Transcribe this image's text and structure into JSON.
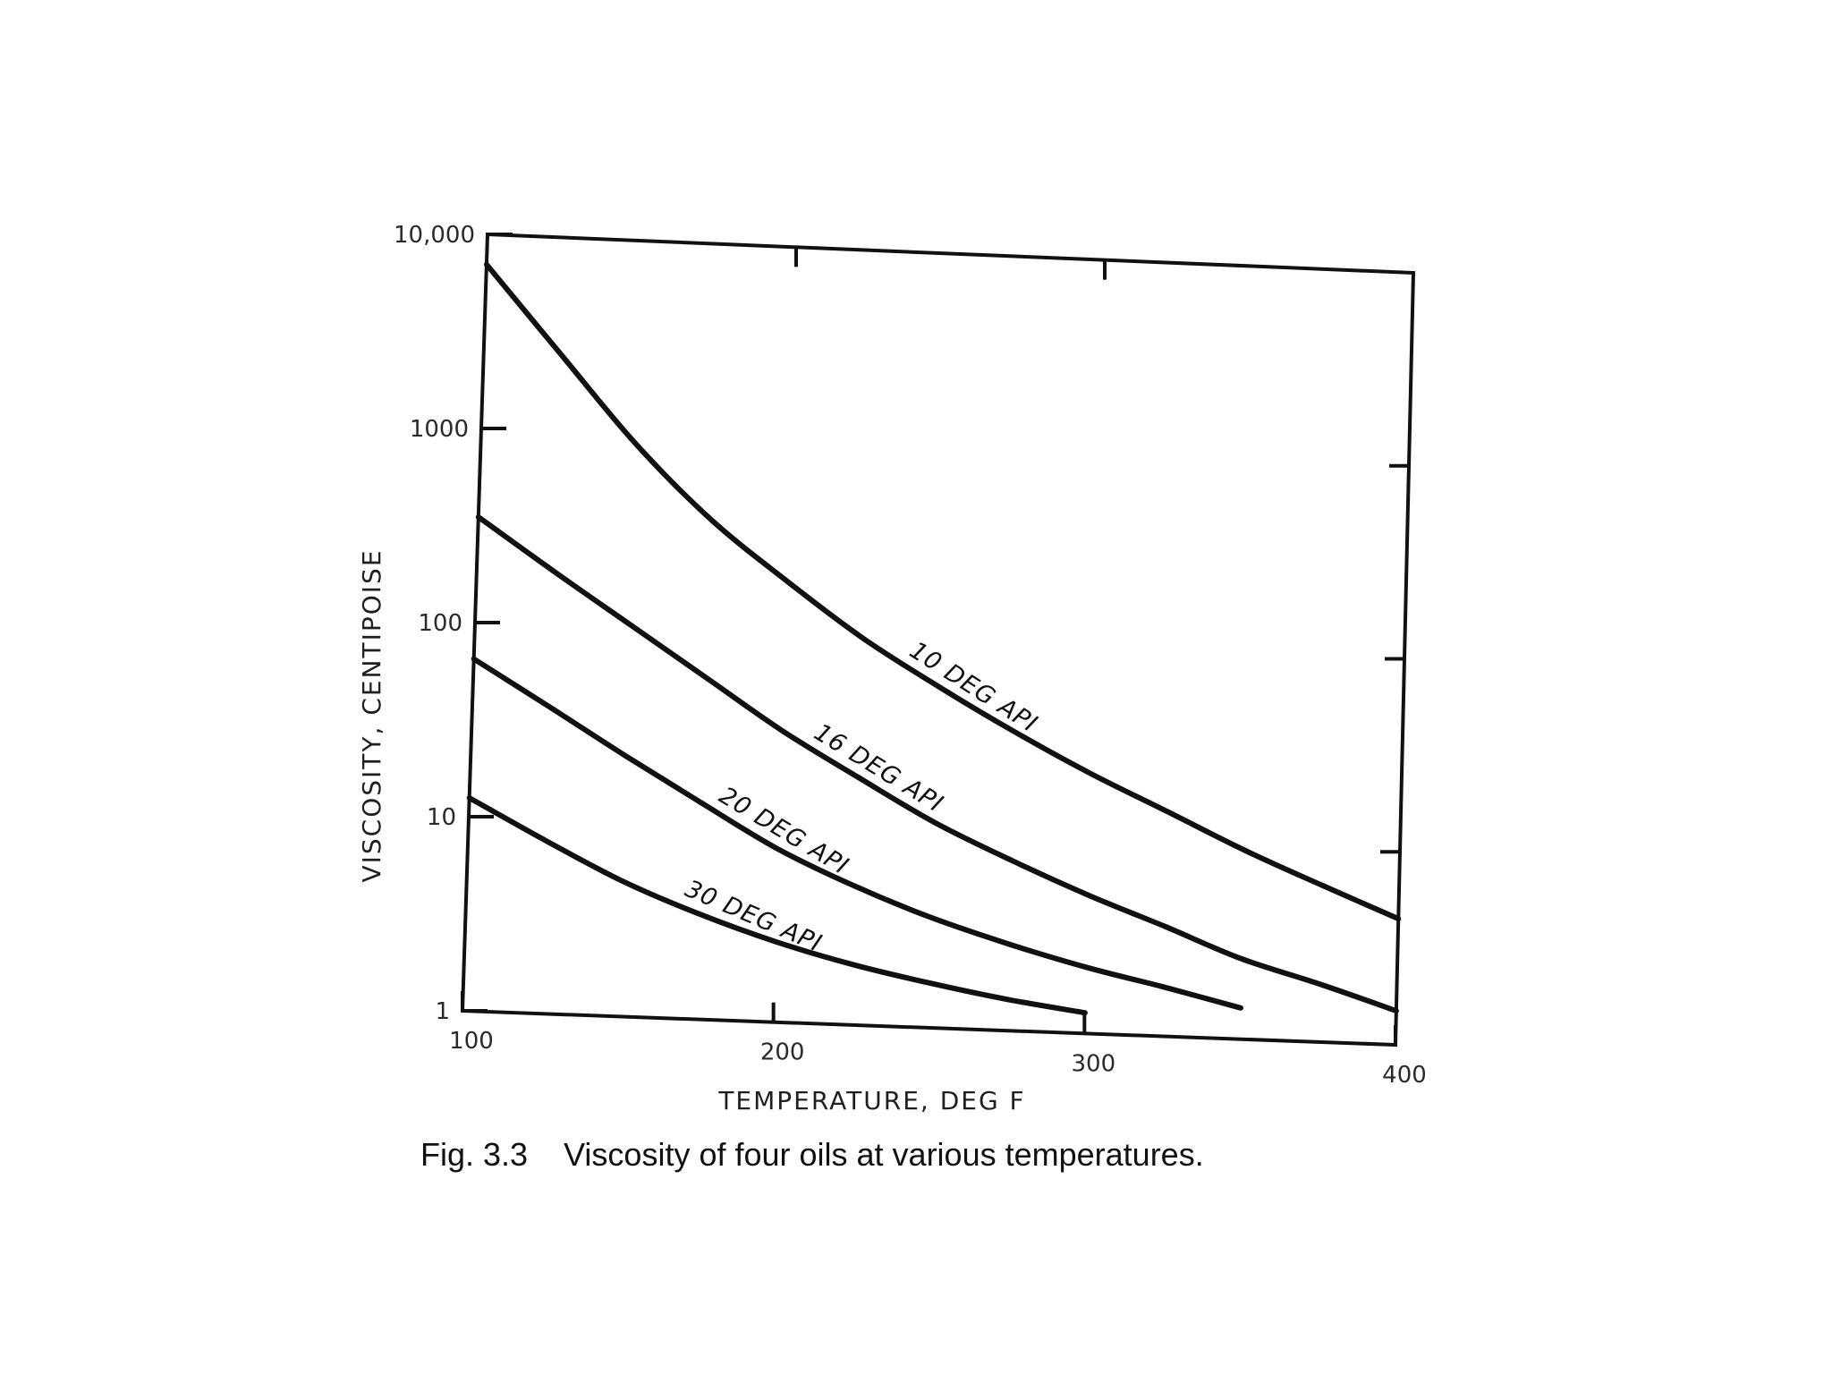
{
  "caption": {
    "number": "Fig. 3.3",
    "text": "Viscosity of four oils at various temperatures."
  },
  "chart_data": {
    "type": "line",
    "title": "",
    "xlabel": "TEMPERATURE, DEG F",
    "ylabel": "VISCOSITY, CENTIPOISE",
    "xlim": [
      100,
      400
    ],
    "ylim": [
      1,
      10000
    ],
    "yscale": "log",
    "grid": false,
    "legend": "labels on curves",
    "x_ticks": [
      100,
      200,
      300,
      400
    ],
    "x_tick_labels": [
      "100",
      "200",
      "300",
      "400"
    ],
    "y_ticks": [
      1,
      10,
      100,
      1000,
      10000
    ],
    "y_tick_labels": [
      "1",
      "10",
      "100",
      "1000",
      "10,000"
    ],
    "series": [
      {
        "name": "10 DEG API",
        "x": [
          100,
          125,
          150,
          175,
          200,
          225,
          250,
          275,
          300,
          325,
          350,
          375,
          400
        ],
        "y": [
          7000,
          2500,
          900,
          380,
          190,
          100,
          58,
          35,
          22,
          14.5,
          9.5,
          6.5,
          4.5
        ]
      },
      {
        "name": "16 DEG API",
        "x": [
          100,
          125,
          150,
          175,
          200,
          225,
          250,
          275,
          300,
          325,
          350,
          375,
          400
        ],
        "y": [
          350,
          190,
          105,
          58,
          32,
          19,
          11.5,
          7.6,
          5.2,
          3.7,
          2.6,
          2.0,
          1.5
        ]
      },
      {
        "name": "20 DEG API",
        "x": [
          100,
          125,
          150,
          175,
          200,
          225,
          250,
          275,
          300,
          325,
          350
        ],
        "y": [
          65,
          38,
          22,
          13,
          7.8,
          5.2,
          3.7,
          2.8,
          2.2,
          1.8,
          1.45
        ]
      },
      {
        "name": "30 DEG API",
        "x": [
          100,
          125,
          150,
          175,
          200,
          225,
          250,
          275,
          300
        ],
        "y": [
          12.5,
          7.8,
          5.0,
          3.5,
          2.6,
          2.05,
          1.7,
          1.45,
          1.28
        ]
      }
    ]
  }
}
